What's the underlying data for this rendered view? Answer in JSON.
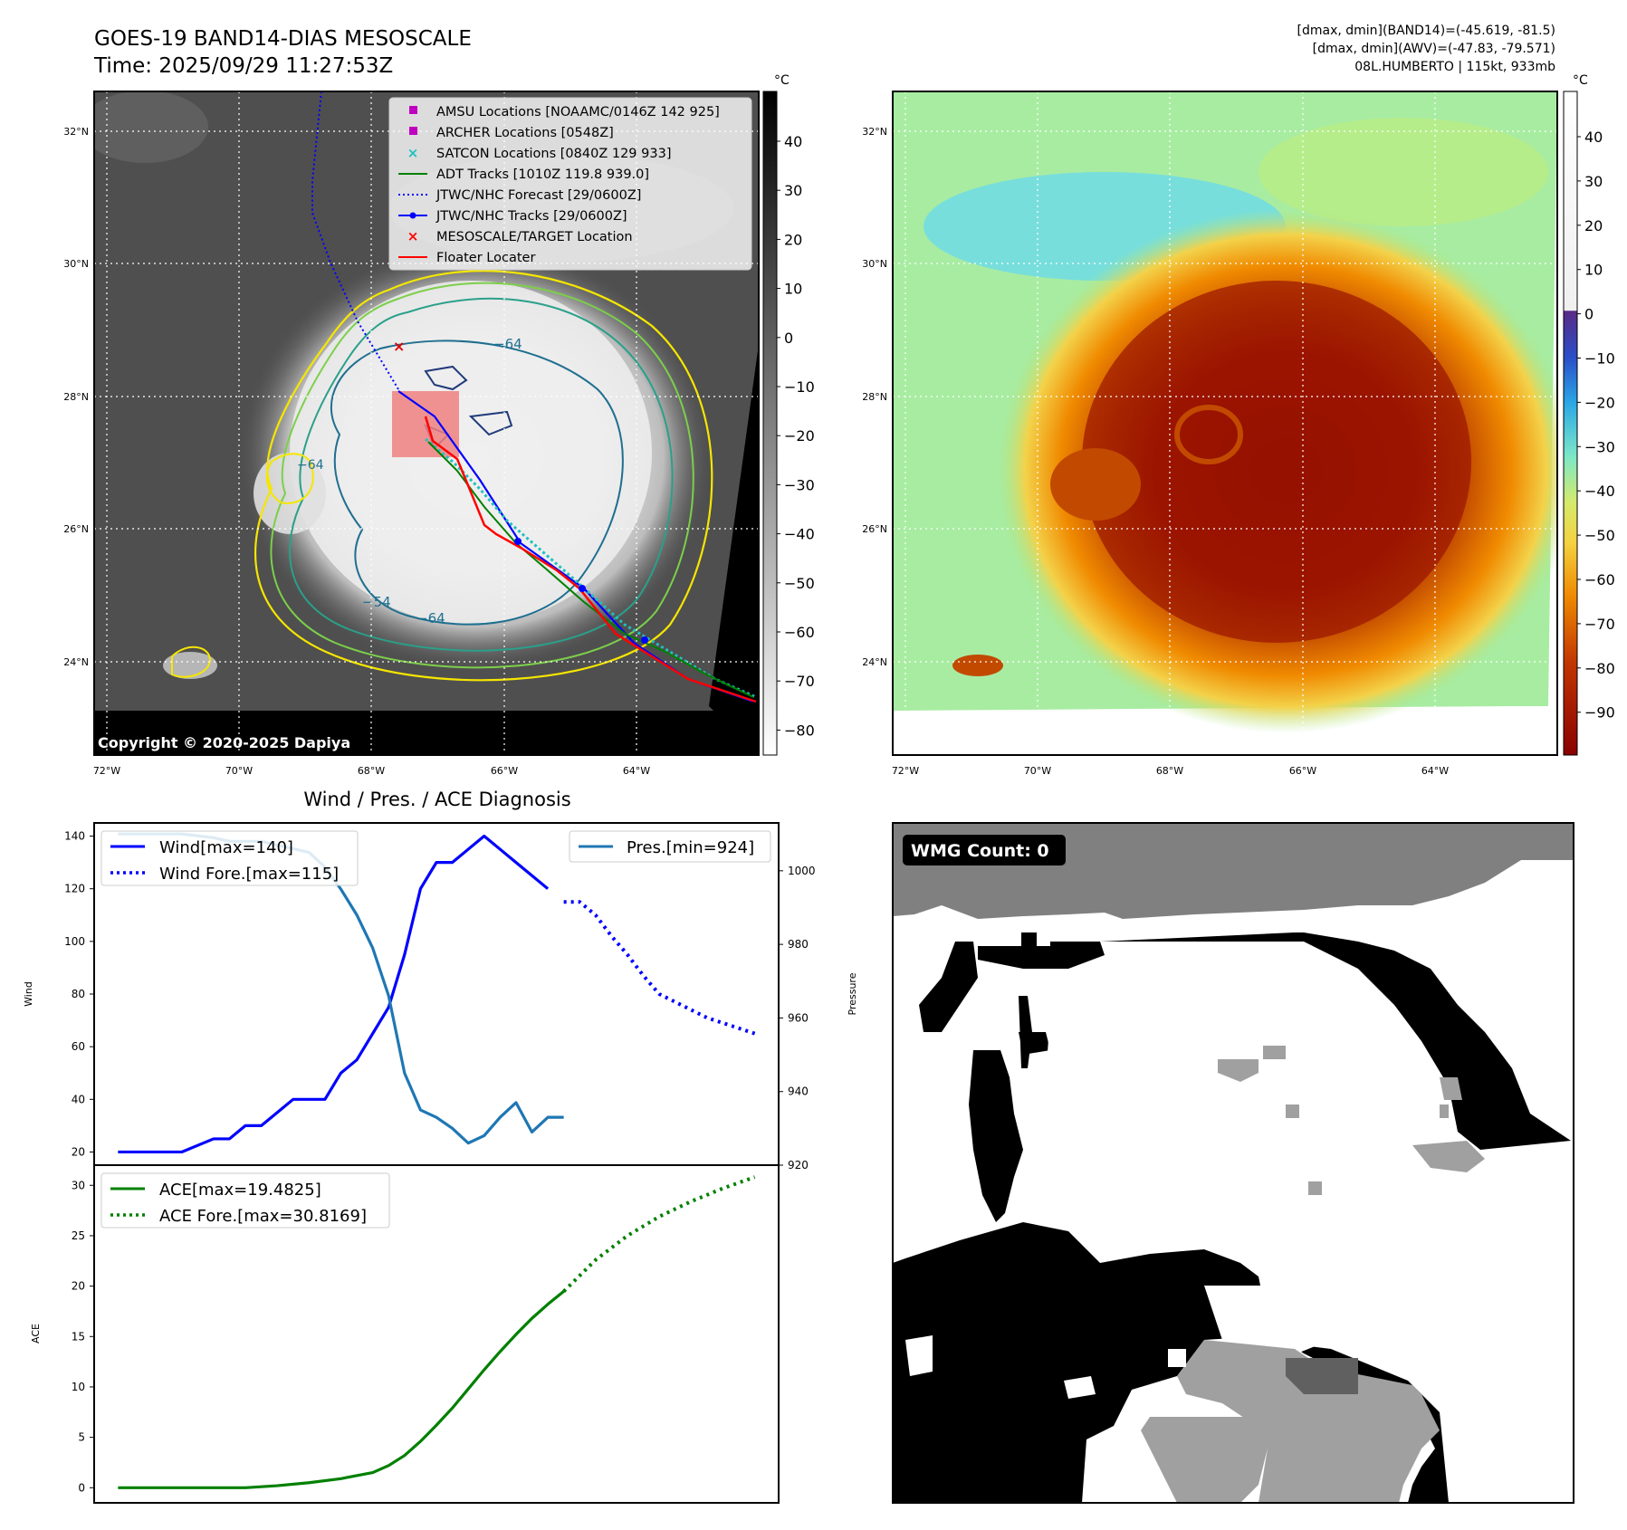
{
  "header": {
    "title_line1": "GOES-19 BAND14-DIAS MESOSCALE",
    "title_line2": "Time: 2025/09/29 11:27:53Z",
    "info_line1": "[dmax, dmin](BAND14)=(-45.619, -81.5)",
    "info_line2": "[dmax, dmin](AWV)=(-47.83, -79.571)",
    "info_line3": "08L.HUMBERTO | 115kt, 933mb"
  },
  "map_axes": {
    "lat_labels": [
      "32°N",
      "30°N",
      "28°N",
      "26°N",
      "24°N"
    ],
    "lon_labels": [
      "72°W",
      "70°W",
      "68°W",
      "66°W",
      "64°W"
    ]
  },
  "ir_panel": {
    "copyright": "Copyright © 2020-2025 Dapiya",
    "contour_label_a": "−64",
    "contour_label_b": "−64",
    "contour_label_c": "−64",
    "contour_label_d": "−54",
    "legend": [
      {
        "label": "AMSU Locations [NOAAMC/0146Z 142 925]",
        "color": "#c000c0",
        "marker": "square"
      },
      {
        "label": "ARCHER Locations [0548Z]",
        "color": "#c000c0",
        "marker": "square"
      },
      {
        "label": "SATCON Locations [0840Z 129 933]",
        "color": "#20c0c0",
        "marker": "x"
      },
      {
        "label": "ADT Tracks [1010Z 119.8 939.0]",
        "color": "#008000",
        "marker": "line"
      },
      {
        "label": "JTWC/NHC Forecast [29/0600Z]",
        "color": "#0000ff",
        "marker": "dotted"
      },
      {
        "label": "JTWC/NHC Tracks [29/0600Z]",
        "color": "#0000ff",
        "marker": "line-dot"
      },
      {
        "label": "MESOSCALE/TARGET Location",
        "color": "#ff0000",
        "marker": "x"
      },
      {
        "label": "Floater Locater",
        "color": "#ff0000",
        "marker": "line"
      }
    ],
    "colorbar_unit": "°C",
    "colorbar_ticks": [
      "40",
      "30",
      "20",
      "10",
      "0",
      "−10",
      "−20",
      "−30",
      "−40",
      "−50",
      "−60",
      "−70",
      "−80"
    ]
  },
  "awv_panel": {
    "colorbar_unit": "°C",
    "colorbar_ticks": [
      "40",
      "30",
      "20",
      "10",
      "0",
      "−10",
      "−20",
      "−30",
      "−40",
      "−50",
      "−60",
      "−70",
      "−80",
      "−90"
    ]
  },
  "wmg_panel": {
    "badge": "WMG Count: 0"
  },
  "colors": {
    "wind": "#0000ff",
    "pressure": "#1f77b4",
    "ace": "#008000",
    "track": "#ff0000"
  },
  "chart_data": [
    {
      "type": "line",
      "title": "Wind / Pres. / ACE Diagnosis",
      "ylabel": "Wind",
      "ylabel_right": "Pressure",
      "ylim": [
        15,
        145
      ],
      "ylim_right": [
        920,
        1013
      ],
      "yticks": [
        20,
        40,
        60,
        80,
        100,
        120,
        140
      ],
      "yticks_right": [
        920,
        940,
        960,
        980,
        1000
      ],
      "legend_left": [
        "Wind[max=140]",
        "Wind Fore.[max=115]"
      ],
      "legend_right": [
        "Pres.[min=924]"
      ],
      "series": [
        {
          "name": "Wind[max=140]",
          "style": "solid",
          "x": [
            0,
            4,
            6,
            7,
            8,
            9,
            10,
            11,
            12,
            13,
            14,
            15,
            16,
            17,
            18,
            19,
            20,
            21,
            22,
            23,
            24,
            25,
            26,
            27
          ],
          "values": [
            20,
            20,
            25,
            25,
            30,
            30,
            35,
            40,
            40,
            40,
            50,
            55,
            65,
            75,
            95,
            120,
            130,
            130,
            135,
            140,
            135,
            130,
            125,
            120
          ]
        },
        {
          "name": "Wind Fore.[max=115]",
          "style": "dotted",
          "x": [
            28,
            29,
            30,
            31,
            32,
            33,
            34,
            35,
            36,
            37,
            38,
            39,
            40
          ],
          "values": [
            115,
            115,
            110,
            102,
            95,
            87,
            80,
            77,
            74,
            71,
            69,
            67,
            65
          ]
        },
        {
          "name": "Pres.[min=924]",
          "style": "solid",
          "axis": "right",
          "x": [
            0,
            4,
            6,
            7,
            8,
            9,
            10,
            11,
            12,
            13,
            14,
            15,
            16,
            17,
            18,
            19,
            20,
            21,
            22,
            23,
            24,
            25,
            26,
            27,
            28
          ],
          "values": [
            1010,
            1010,
            1009,
            1008,
            1008,
            1008,
            1007,
            1006,
            1005,
            1001,
            995,
            988,
            979,
            966,
            945,
            935,
            933,
            930,
            926,
            928,
            933,
            937,
            929,
            933,
            933
          ]
        }
      ]
    },
    {
      "type": "line",
      "title": "",
      "ylabel": "ACE",
      "ylim": [
        -1.5,
        32
      ],
      "yticks": [
        0,
        5,
        10,
        15,
        20,
        25,
        30
      ],
      "legend": [
        "ACE[max=19.4825]",
        "ACE Fore.[max=30.8169]"
      ],
      "series": [
        {
          "name": "ACE[max=19.4825]",
          "style": "solid",
          "x": [
            0,
            4,
            8,
            10,
            12,
            14,
            16,
            17,
            18,
            19,
            20,
            21,
            22,
            23,
            24,
            25,
            26,
            27,
            28
          ],
          "values": [
            0,
            0,
            0,
            0.2,
            0.5,
            0.9,
            1.5,
            2.2,
            3.2,
            4.6,
            6.2,
            7.9,
            9.8,
            11.7,
            13.5,
            15.2,
            16.8,
            18.2,
            19.48
          ]
        },
        {
          "name": "ACE Fore.[max=30.8169]",
          "style": "dotted",
          "x": [
            28,
            30,
            32,
            34,
            36,
            38,
            40
          ],
          "values": [
            19.48,
            22.6,
            25.0,
            26.9,
            28.4,
            29.7,
            30.82
          ]
        }
      ]
    }
  ]
}
